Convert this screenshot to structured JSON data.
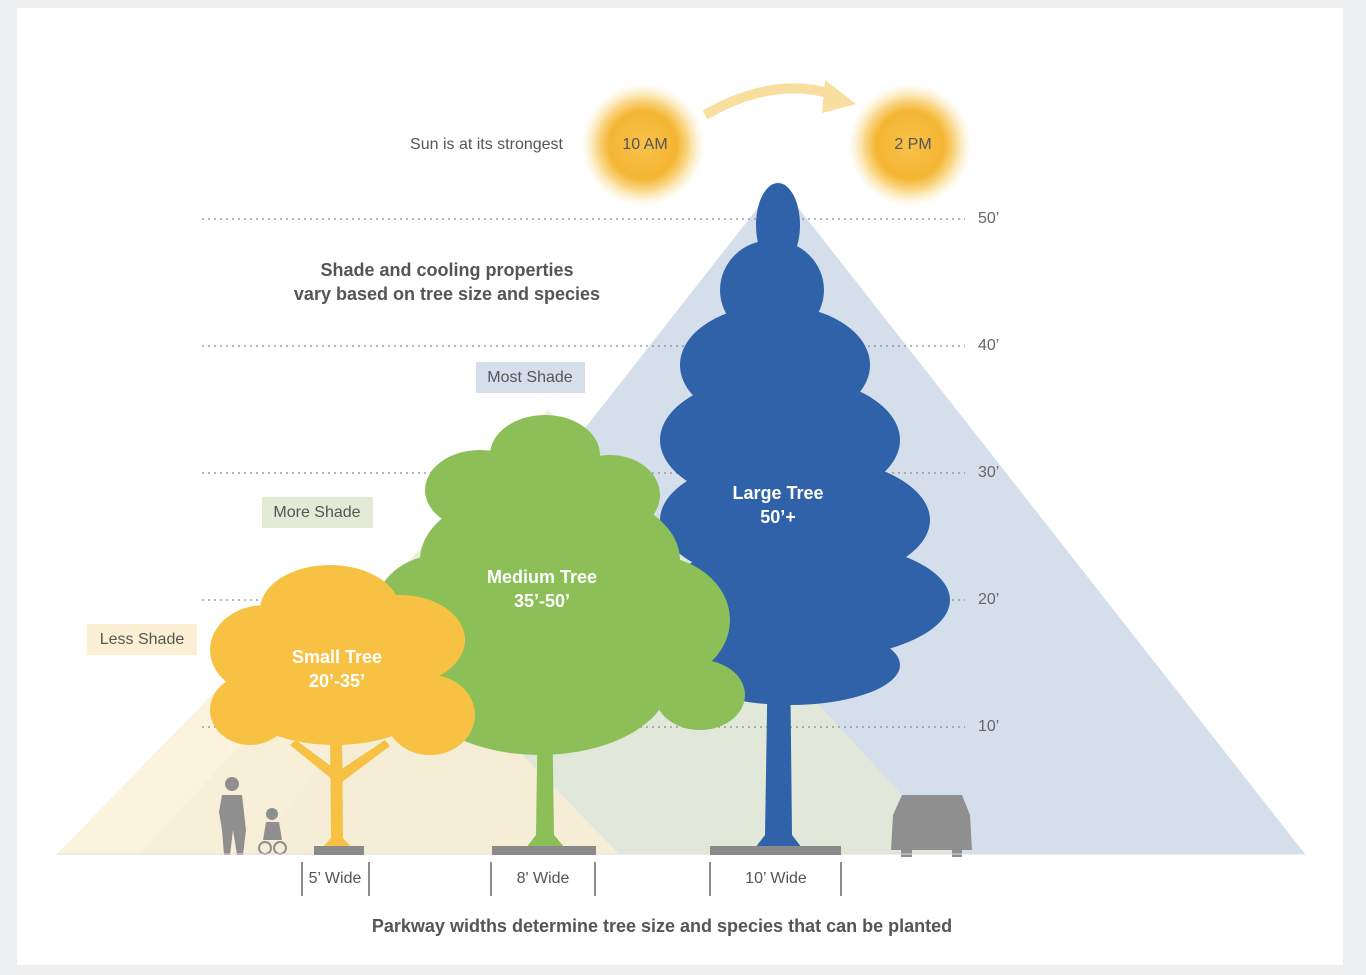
{
  "sun": {
    "caption": "Sun is at its strongest",
    "times": [
      "10 AM",
      "2 PM"
    ]
  },
  "heights": [
    "50’",
    "40’",
    "30’",
    "20’",
    "10’"
  ],
  "headline": [
    "Shade and cooling properties",
    "vary based on tree size and species"
  ],
  "shade_levels": [
    "Most Shade",
    "More Shade",
    "Less Shade"
  ],
  "trees": [
    {
      "name": "Small Tree",
      "height": "20’-35’"
    },
    {
      "name": "Medium Tree",
      "height": "35’-50’"
    },
    {
      "name": "Large Tree",
      "height": "50’+"
    }
  ],
  "widths": [
    "5’ Wide",
    "8' Wide",
    "10’ Wide"
  ],
  "footer": "Parkway widths determine tree size and species that can be planted"
}
